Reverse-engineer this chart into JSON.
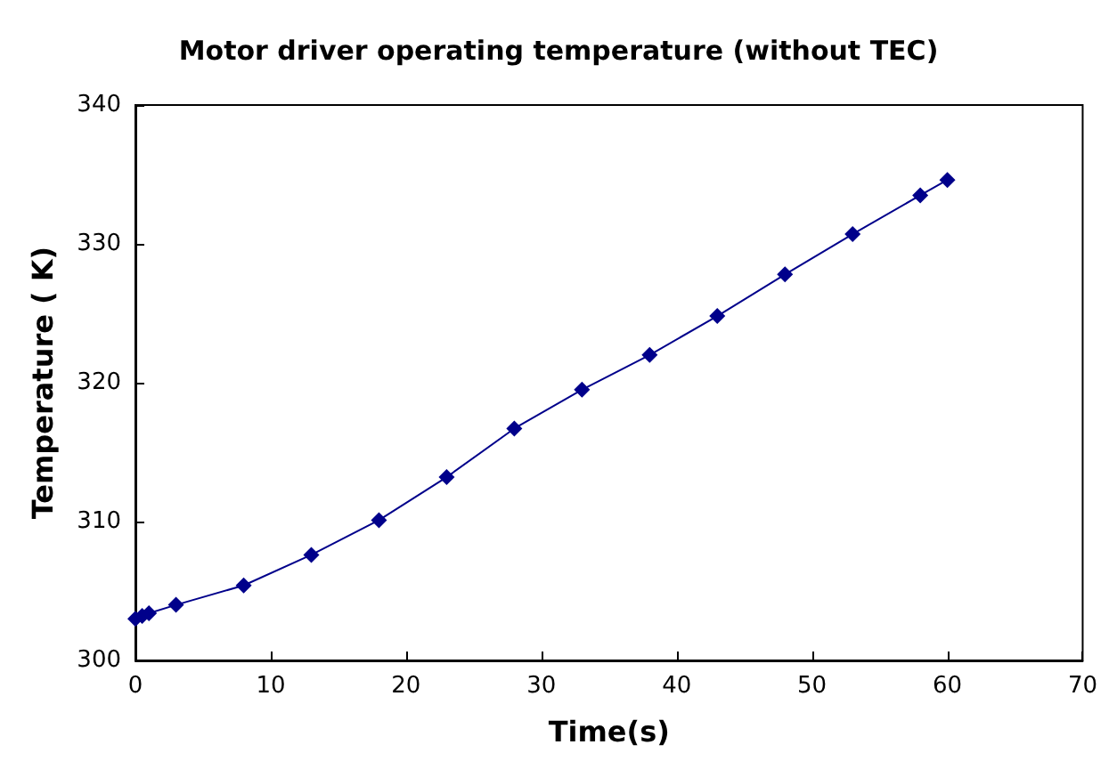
{
  "chart_data": {
    "type": "line",
    "title": "Motor driver operating temperature (without TEC)",
    "xlabel": "Time(s)",
    "ylabel": "Temperature ( K)",
    "x": [
      0,
      0.5,
      1,
      3,
      8,
      13,
      18,
      23,
      28,
      33,
      38,
      43,
      48,
      53,
      58,
      60
    ],
    "series": [
      {
        "color": "#00008b",
        "values": [
          303.0,
          303.2,
          303.4,
          304.0,
          305.4,
          307.6,
          310.1,
          313.2,
          316.7,
          319.5,
          322.0,
          324.8,
          327.8,
          330.7,
          333.5,
          334.6
        ]
      }
    ],
    "xlim": [
      0,
      70
    ],
    "xticks": [
      0,
      10,
      20,
      30,
      40,
      50,
      60,
      70
    ],
    "ylim": [
      300,
      340
    ],
    "yticks": [
      300,
      310,
      320,
      330,
      340
    ],
    "marker": "diamond",
    "line_style": "solid",
    "grid": false
  }
}
